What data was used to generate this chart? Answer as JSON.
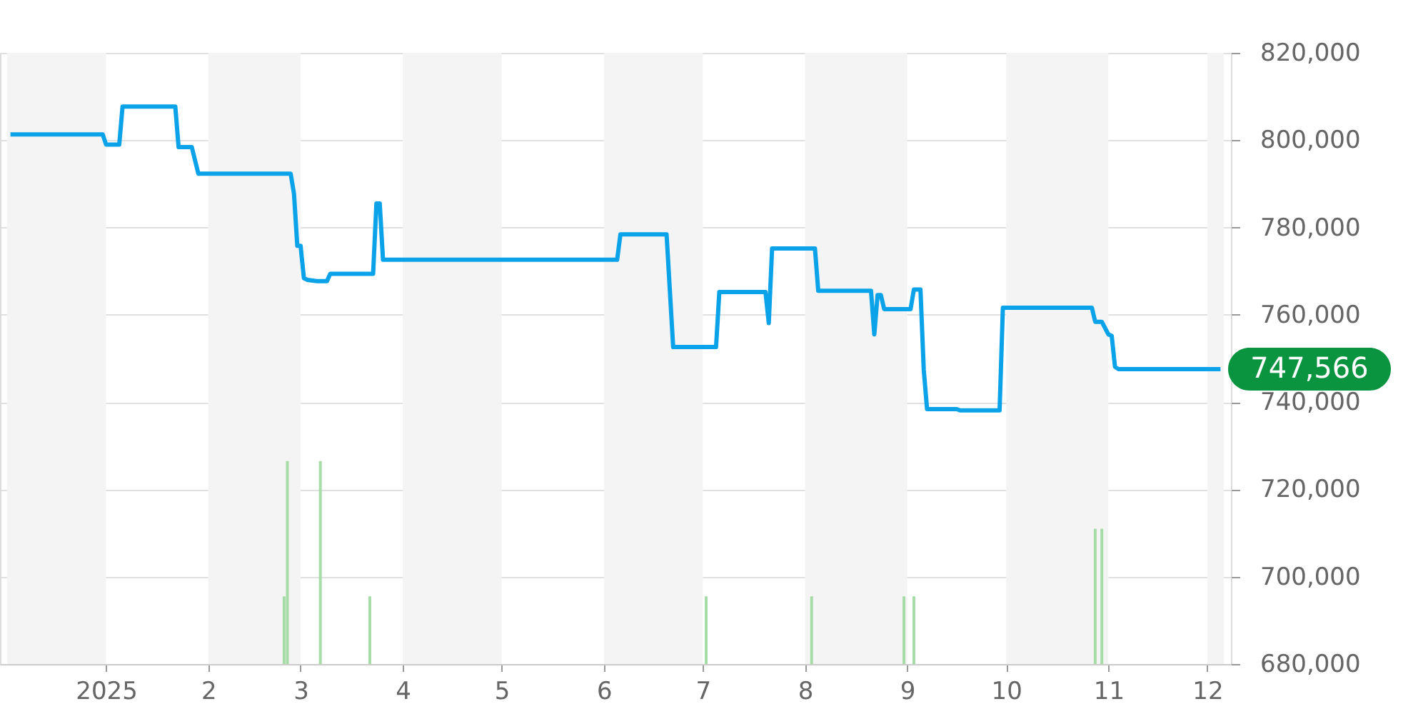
{
  "chart_data": {
    "type": "line",
    "x": [
      "2024-12-03",
      "2024-12-31",
      "2025-01-01",
      "2025-01-05",
      "2025-01-06",
      "2025-01-22",
      "2025-01-23",
      "2025-01-27",
      "2025-01-29",
      "2025-02-26",
      "2025-02-27",
      "2025-02-28",
      "2025-03-01",
      "2025-03-02",
      "2025-03-03",
      "2025-03-06",
      "2025-03-09",
      "2025-03-10",
      "2025-03-23",
      "2025-03-24",
      "2025-03-25",
      "2025-03-26",
      "2025-06-05",
      "2025-06-06",
      "2025-06-20",
      "2025-06-22",
      "2025-07-05",
      "2025-07-06",
      "2025-07-20",
      "2025-07-21",
      "2025-07-22",
      "2025-08-04",
      "2025-08-05",
      "2025-08-21",
      "2025-08-22",
      "2025-08-23",
      "2025-08-24",
      "2025-08-25",
      "2025-09-02",
      "2025-09-03",
      "2025-09-05",
      "2025-09-06",
      "2025-09-07",
      "2025-09-16",
      "2025-09-17",
      "2025-09-29",
      "2025-09-30",
      "2025-10-27",
      "2025-10-28",
      "2025-10-30",
      "2025-11-01",
      "2025-11-02",
      "2025-11-03",
      "2025-11-04",
      "2025-12-05"
    ],
    "series": [
      {
        "color": "#0aa2e8",
        "values": [
          801300,
          801300,
          799000,
          799000,
          807700,
          807700,
          798400,
          798400,
          792300,
          792300,
          787700,
          775800,
          775800,
          768400,
          768000,
          767700,
          767700,
          769400,
          769400,
          785500,
          785500,
          772600,
          772600,
          778400,
          778400,
          752600,
          752600,
          765200,
          765200,
          758100,
          775200,
          775200,
          765500,
          765500,
          755500,
          764500,
          764500,
          761300,
          761300,
          765800,
          765800,
          747400,
          738400,
          738400,
          738100,
          738100,
          761600,
          761600,
          758400,
          758400,
          755500,
          755200,
          748100,
          747566,
          747566
        ]
      },
      {
        "type": "bar",
        "color": "#a6dca6",
        "x": [
          "2025-02-24",
          "2025-02-25",
          "2025-03-07",
          "2025-03-22",
          "2025-07-02",
          "2025-08-03",
          "2025-08-31",
          "2025-09-03",
          "2025-10-28",
          "2025-10-30"
        ],
        "values": [
          695500,
          726500,
          726500,
          695500,
          695500,
          695500,
          695500,
          695500,
          711000,
          711000
        ]
      }
    ],
    "xlim": [
      "2024-12-02",
      "2025-12-06"
    ],
    "xticks": [
      {
        "value": "2025-01-01",
        "label": "2025"
      },
      {
        "value": "2025-02-01",
        "label": "2"
      },
      {
        "value": "2025-03-01",
        "label": "3"
      },
      {
        "value": "2025-04-01",
        "label": "4"
      },
      {
        "value": "2025-05-01",
        "label": "5"
      },
      {
        "value": "2025-06-01",
        "label": "6"
      },
      {
        "value": "2025-07-01",
        "label": "7"
      },
      {
        "value": "2025-08-01",
        "label": "8"
      },
      {
        "value": "2025-09-01",
        "label": "9"
      },
      {
        "value": "2025-10-01",
        "label": "10"
      },
      {
        "value": "2025-11-01",
        "label": "11"
      },
      {
        "value": "2025-12-01",
        "label": "12"
      }
    ],
    "ylim": [
      680000,
      820000
    ],
    "yticks": [
      {
        "value": 680000,
        "label": "680,000"
      },
      {
        "value": 700000,
        "label": "700,000"
      },
      {
        "value": 720000,
        "label": "720,000"
      },
      {
        "value": 740000,
        "label": "740,000"
      },
      {
        "value": 760000,
        "label": "760,000"
      },
      {
        "value": 780000,
        "label": "780,000"
      },
      {
        "value": 800000,
        "label": "800,000"
      },
      {
        "value": 820000,
        "label": "820,000"
      }
    ],
    "bands": [
      {
        "axis": "x",
        "from": "2024-12-02",
        "to": "2025-01-01",
        "color": "#f4f4f4"
      },
      {
        "axis": "x",
        "from": "2025-02-01",
        "to": "2025-03-01",
        "color": "#f4f4f4"
      },
      {
        "axis": "x",
        "from": "2025-04-01",
        "to": "2025-05-01",
        "color": "#f4f4f4"
      },
      {
        "axis": "x",
        "from": "2025-06-01",
        "to": "2025-07-01",
        "color": "#f4f4f4"
      },
      {
        "axis": "x",
        "from": "2025-08-01",
        "to": "2025-09-01",
        "color": "#f4f4f4"
      },
      {
        "axis": "x",
        "from": "2025-10-01",
        "to": "2025-11-01",
        "color": "#f4f4f4"
      },
      {
        "axis": "x",
        "from": "2025-12-01",
        "to": "2025-12-06",
        "color": "#f4f4f4"
      }
    ],
    "annotations": [
      {
        "text": "747,566",
        "x": "2025-12-05",
        "y": 747566
      }
    ],
    "grid": "y"
  }
}
